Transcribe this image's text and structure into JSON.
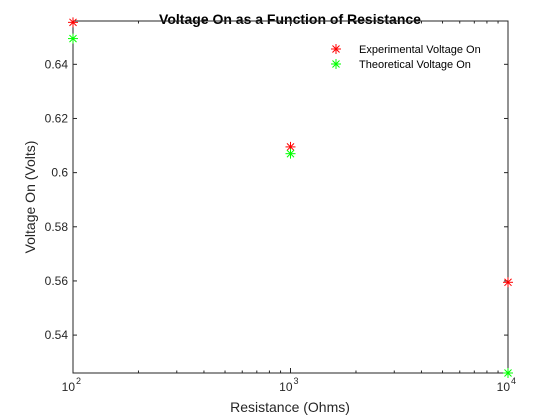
{
  "chart_data": {
    "type": "scatter",
    "title": "Voltage On as a Function of Resistance",
    "xlabel": "Resistance (Ohms)",
    "ylabel": "Voltage On (Volts)",
    "xscale": "log",
    "xlim": [
      100,
      10000
    ],
    "ylim": [
      0.526,
      0.656
    ],
    "x_ticks": [
      {
        "base": "10",
        "exp": "2",
        "value": 100
      },
      {
        "base": "10",
        "exp": "3",
        "value": 1000
      },
      {
        "base": "10",
        "exp": "4",
        "value": 10000
      }
    ],
    "y_ticks": [
      "0.54",
      "0.56",
      "0.58",
      "0.6",
      "0.62",
      "0.64"
    ],
    "grid": false,
    "legend_position": "top-right",
    "series": [
      {
        "name": "Experimental Voltage On",
        "color": "#ff0000",
        "marker": "asterisk",
        "points": [
          {
            "x": 100,
            "y": 0.6555
          },
          {
            "x": 1000,
            "y": 0.6095
          },
          {
            "x": 10000,
            "y": 0.5595
          }
        ]
      },
      {
        "name": "Theoretical Voltage On",
        "color": "#00ff00",
        "marker": "asterisk",
        "points": [
          {
            "x": 100,
            "y": 0.6495
          },
          {
            "x": 1000,
            "y": 0.607
          },
          {
            "x": 10000,
            "y": 0.526
          }
        ]
      }
    ]
  }
}
